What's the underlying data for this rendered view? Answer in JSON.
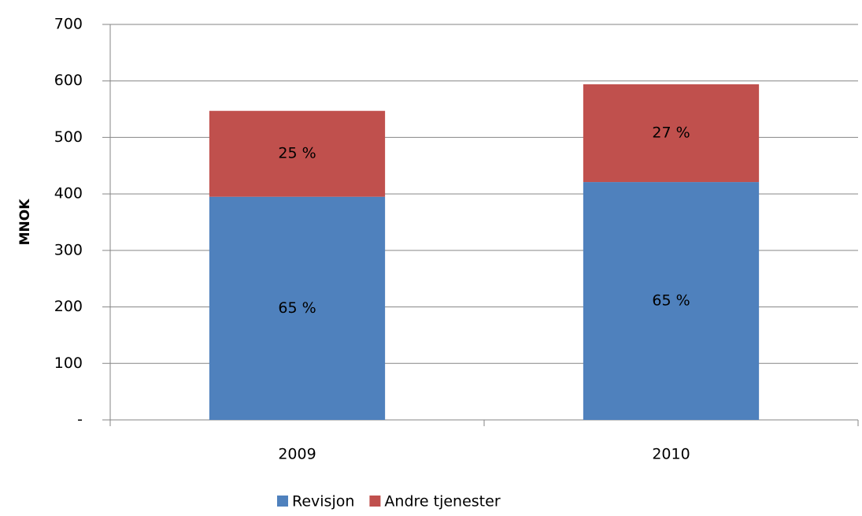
{
  "chart_data": {
    "type": "stacked_bar",
    "y_label": "MNOK",
    "categories": [
      "2009",
      "2010"
    ],
    "series": [
      {
        "name": "Revisjon",
        "color": "#4f81bd",
        "values": [
          395,
          421
        ],
        "value_labels": [
          "65 %",
          "65 %"
        ]
      },
      {
        "name": "Andre tjenester",
        "color": "#c0504d",
        "values": [
          152,
          173
        ],
        "value_labels": [
          "25 %",
          "27 %"
        ]
      }
    ],
    "ylim": [
      0,
      700
    ],
    "yticks": [
      {
        "value": 0,
        "label": "-"
      },
      100,
      200,
      300,
      400,
      500,
      600,
      700
    ],
    "grid": true,
    "legend": "bottom"
  }
}
